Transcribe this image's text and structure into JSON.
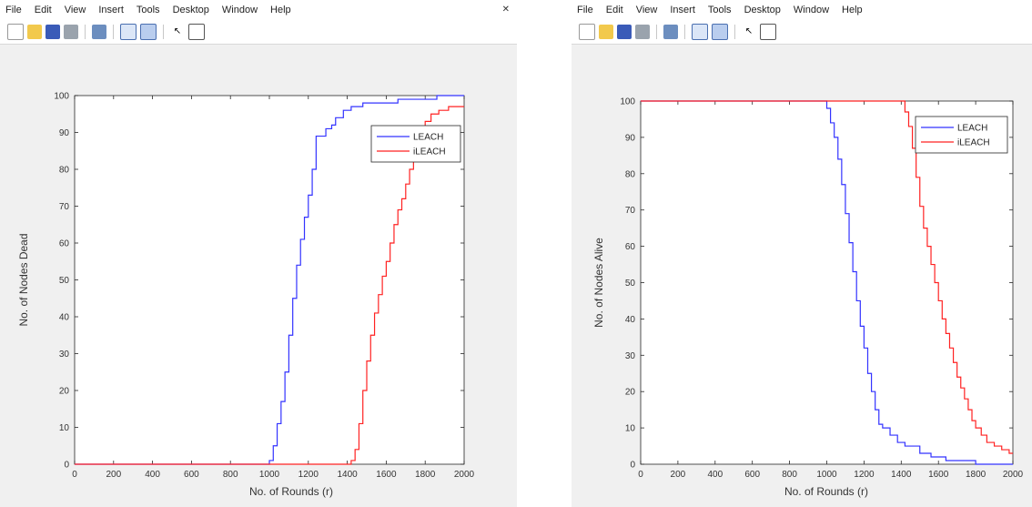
{
  "menu": [
    "File",
    "Edit",
    "View",
    "Insert",
    "Tools",
    "Desktop",
    "Window",
    "Help"
  ],
  "toolbar": [
    "new-icon",
    "open-icon",
    "save-icon",
    "print-icon",
    "copy-figure-icon",
    "hide-tools-icon",
    "show-tools-icon",
    "pointer-icon",
    "inspector-icon"
  ],
  "colors": {
    "leach": "#3333ff",
    "ileach": "#ff2222",
    "figure_bg": "#f0f0f0"
  },
  "chart_data": [
    {
      "type": "line",
      "title": "",
      "xlabel": "No. of Rounds (r)",
      "ylabel": "No. of  Nodes Dead",
      "xlim": [
        0,
        2000
      ],
      "ylim": [
        0,
        100
      ],
      "xticks": [
        0,
        200,
        400,
        600,
        800,
        1000,
        1200,
        1400,
        1600,
        1800,
        2000
      ],
      "yticks": [
        0,
        10,
        20,
        30,
        40,
        50,
        60,
        70,
        80,
        90,
        100
      ],
      "legend_position": "top-right",
      "grid": false,
      "series": [
        {
          "name": "LEACH",
          "color": "#3333ff",
          "x": [
            0,
            985,
            1000,
            1020,
            1040,
            1060,
            1080,
            1100,
            1120,
            1140,
            1160,
            1180,
            1200,
            1220,
            1240,
            1260,
            1290,
            1320,
            1340,
            1380,
            1420,
            1480,
            1560,
            1660,
            1760,
            1860,
            2000
          ],
          "y": [
            0,
            0,
            1,
            5,
            11,
            17,
            25,
            35,
            45,
            54,
            61,
            67,
            73,
            80,
            89,
            89,
            91,
            92,
            94,
            96,
            97,
            98,
            98,
            99,
            99,
            100,
            100
          ]
        },
        {
          "name": "iLEACH",
          "color": "#ff2222",
          "x": [
            0,
            1400,
            1420,
            1440,
            1460,
            1480,
            1500,
            1520,
            1540,
            1560,
            1580,
            1600,
            1620,
            1640,
            1660,
            1680,
            1700,
            1720,
            1740,
            1760,
            1780,
            1800,
            1830,
            1870,
            1920,
            2000
          ],
          "y": [
            0,
            0,
            1,
            4,
            11,
            20,
            28,
            35,
            41,
            46,
            51,
            55,
            60,
            65,
            69,
            72,
            76,
            80,
            84,
            87,
            90,
            93,
            95,
            96,
            97,
            97
          ]
        }
      ]
    },
    {
      "type": "line",
      "title": "",
      "xlabel": "No. of Rounds (r)",
      "ylabel": "No. of  Nodes Alive",
      "xlim": [
        0,
        2000
      ],
      "ylim": [
        0,
        100
      ],
      "xticks": [
        0,
        200,
        400,
        600,
        800,
        1000,
        1200,
        1400,
        1600,
        1800,
        2000
      ],
      "yticks": [
        0,
        10,
        20,
        30,
        40,
        50,
        60,
        70,
        80,
        90,
        100
      ],
      "legend_position": "top-right",
      "grid": false,
      "series": [
        {
          "name": "LEACH",
          "color": "#3333ff",
          "x": [
            0,
            980,
            1000,
            1020,
            1040,
            1060,
            1080,
            1100,
            1120,
            1140,
            1160,
            1180,
            1200,
            1220,
            1240,
            1260,
            1280,
            1300,
            1340,
            1380,
            1420,
            1500,
            1560,
            1640,
            1720,
            1800,
            1900,
            2000
          ],
          "y": [
            100,
            100,
            98,
            94,
            90,
            84,
            77,
            69,
            61,
            53,
            45,
            38,
            32,
            25,
            20,
            15,
            11,
            10,
            8,
            6,
            5,
            3,
            2,
            1,
            1,
            0,
            0,
            0
          ]
        },
        {
          "name": "iLEACH",
          "color": "#ff2222",
          "x": [
            0,
            1400,
            1420,
            1440,
            1460,
            1480,
            1500,
            1520,
            1540,
            1560,
            1580,
            1600,
            1620,
            1640,
            1660,
            1680,
            1700,
            1720,
            1740,
            1760,
            1780,
            1800,
            1830,
            1860,
            1900,
            1940,
            1980,
            2000
          ],
          "y": [
            100,
            100,
            97,
            93,
            87,
            79,
            71,
            65,
            60,
            55,
            50,
            45,
            40,
            36,
            32,
            28,
            24,
            21,
            18,
            15,
            12,
            10,
            8,
            6,
            5,
            4,
            3,
            3
          ]
        }
      ]
    }
  ]
}
